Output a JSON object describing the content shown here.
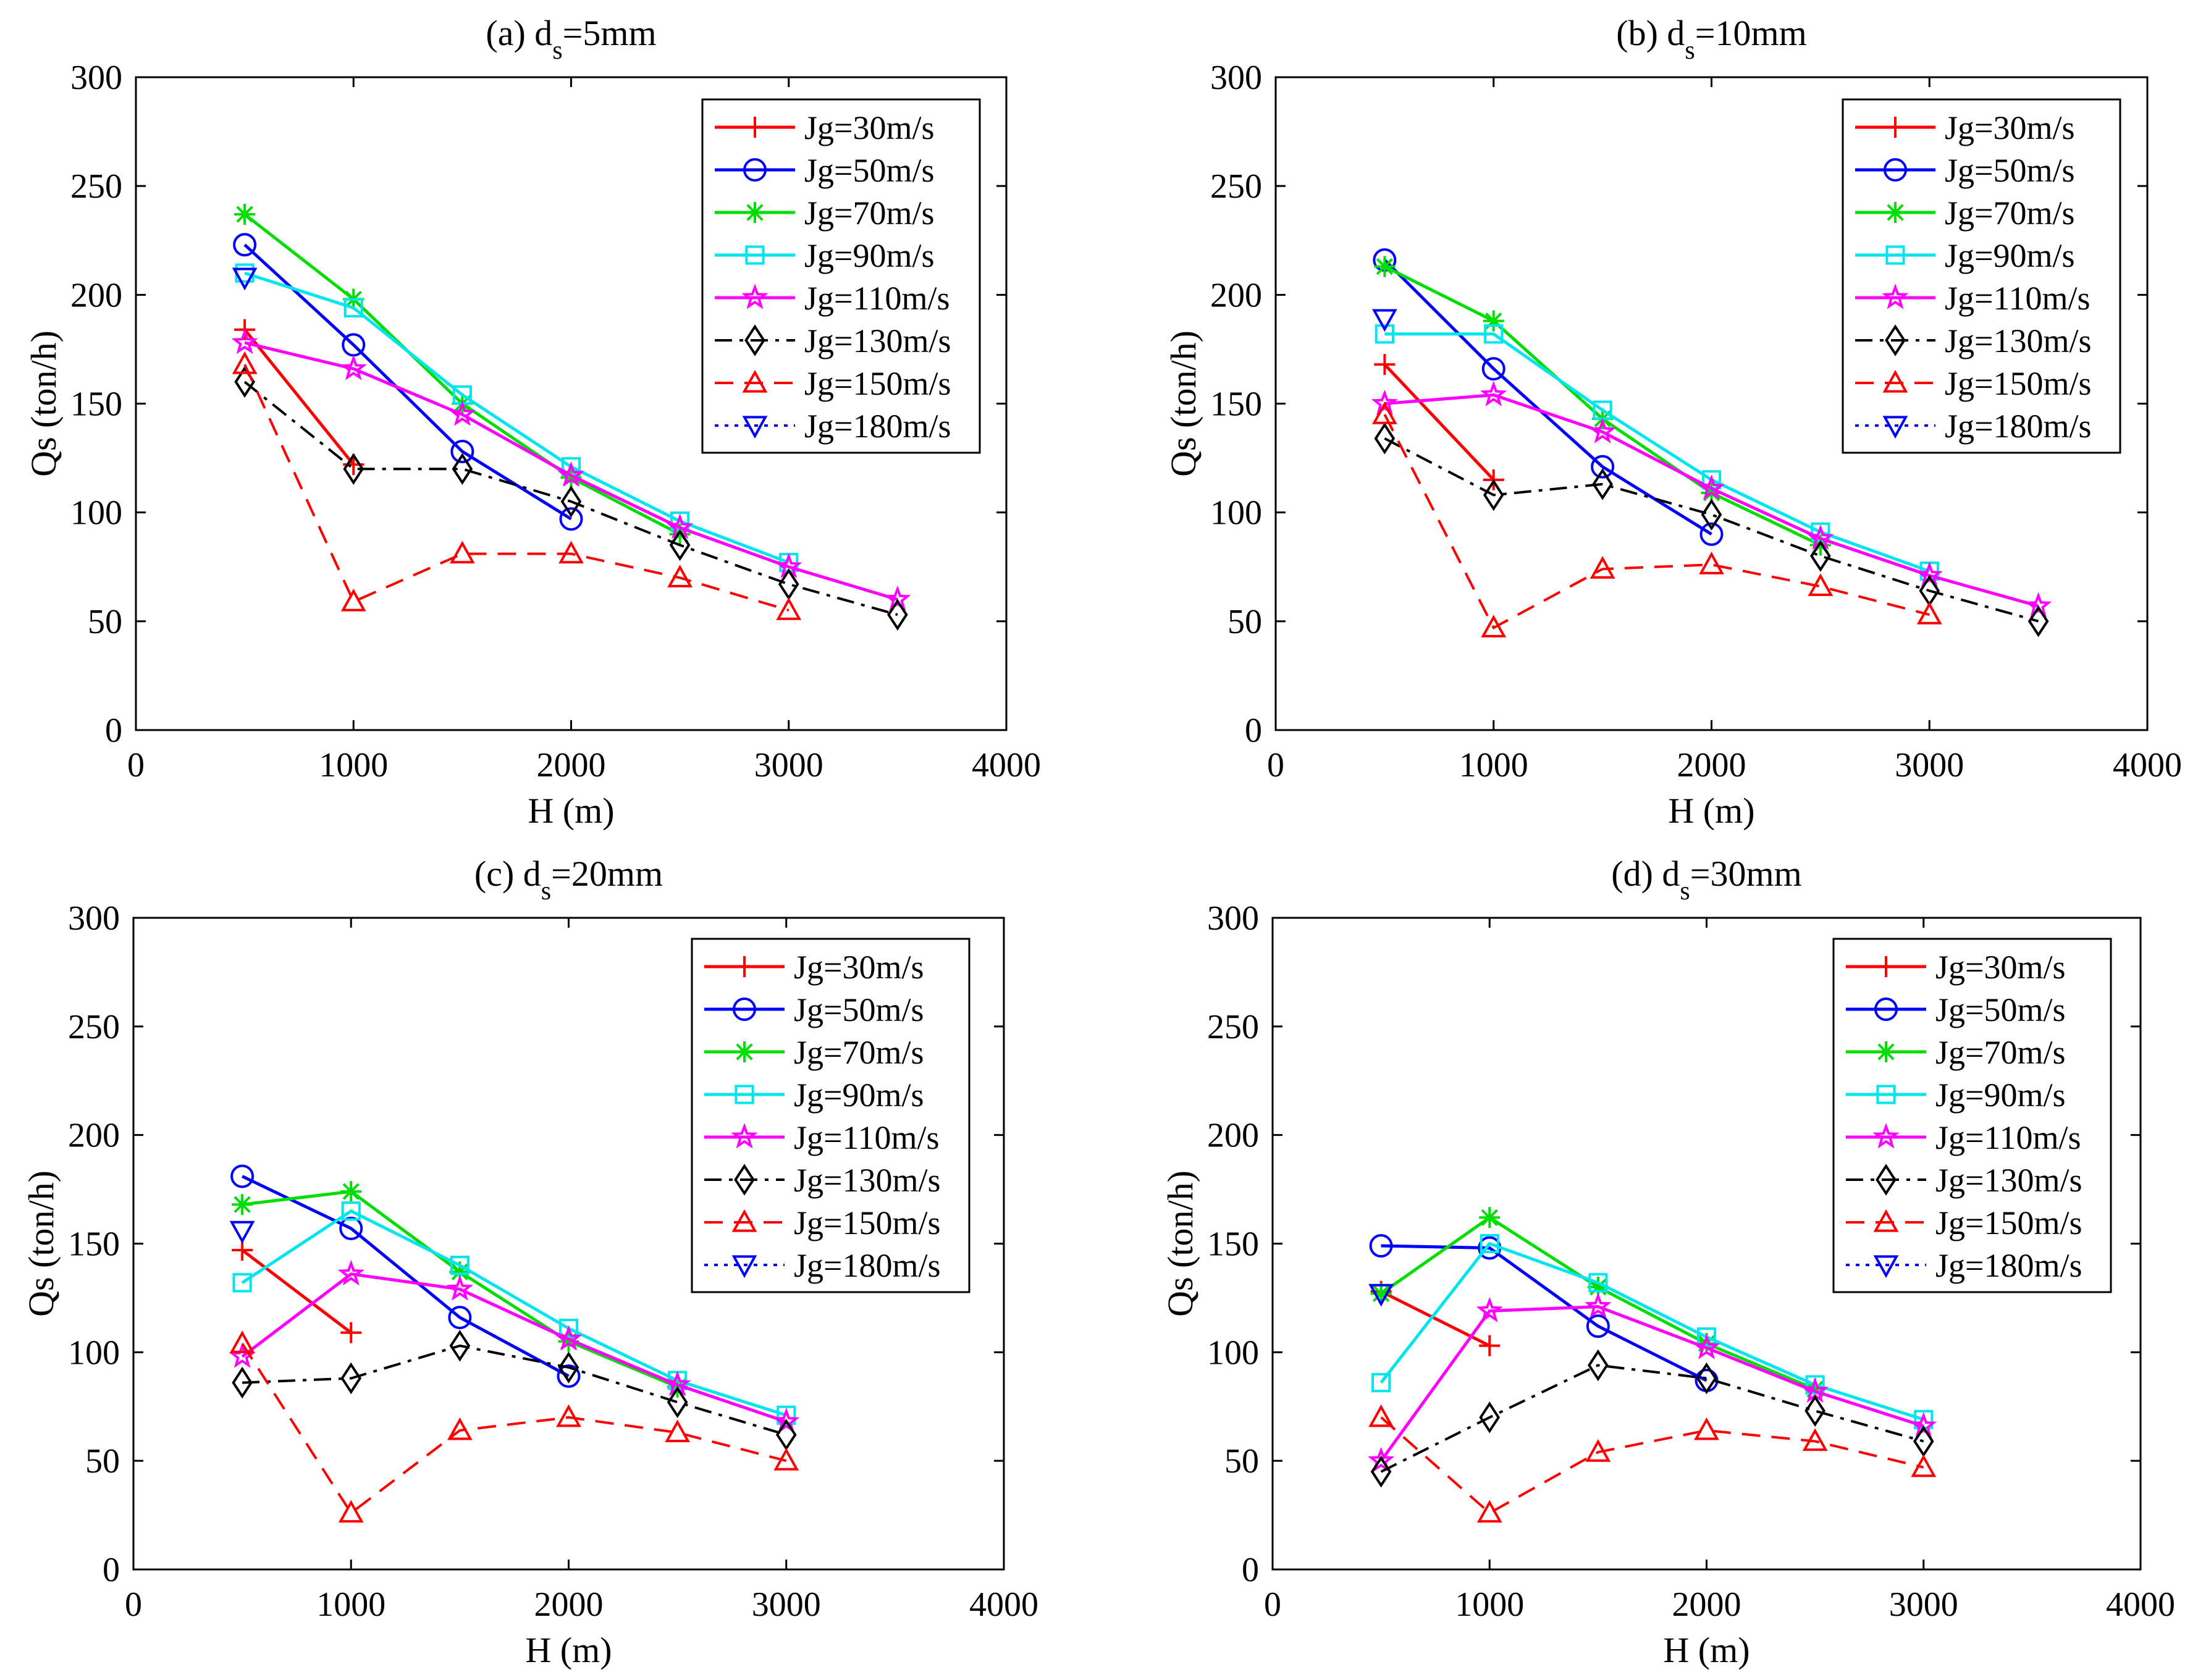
{
  "series_styles": [
    {
      "name": "Jg=30m/s",
      "color": "#ff0000",
      "marker": "plus",
      "dash": "solid"
    },
    {
      "name": "Jg=50m/s",
      "color": "#0000ff",
      "marker": "circle",
      "dash": "solid"
    },
    {
      "name": "Jg=70m/s",
      "color": "#00dd00",
      "marker": "asterisk",
      "dash": "solid"
    },
    {
      "name": "Jg=90m/s",
      "color": "#00e5ee",
      "marker": "square",
      "dash": "solid"
    },
    {
      "name": "Jg=110m/s",
      "color": "#ff00ff",
      "marker": "pentagram",
      "dash": "solid"
    },
    {
      "name": "Jg=130m/s",
      "color": "#000000",
      "marker": "diamond",
      "dash": "dashdot"
    },
    {
      "name": "Jg=150m/s",
      "color": "#ff0000",
      "marker": "triangle-up",
      "dash": "dashed"
    },
    {
      "name": "Jg=180m/s",
      "color": "#0000ff",
      "marker": "triangle-down",
      "dash": "dotted"
    }
  ],
  "chart_data": [
    {
      "type": "line",
      "title": {
        "prefix": "(a) d",
        "sub": "s",
        "suffix": "=5mm"
      },
      "xlabel": "H (m)",
      "ylabel": "Qs (ton/h)",
      "xlim": [
        0,
        4000
      ],
      "ylim": [
        0,
        300
      ],
      "xticks": [
        "0",
        "1000",
        "2000",
        "3000",
        "4000"
      ],
      "yticks": [
        "0",
        "50",
        "100",
        "150",
        "200",
        "250",
        "300"
      ],
      "legend": "top-right",
      "grid": false,
      "series": [
        {
          "name": "Jg=30m/s",
          "x": [
            500,
            1000
          ],
          "y": [
            184,
            122
          ]
        },
        {
          "name": "Jg=50m/s",
          "x": [
            500,
            1000,
            1500,
            2000
          ],
          "y": [
            223,
            177,
            128,
            97
          ]
        },
        {
          "name": "Jg=70m/s",
          "x": [
            500,
            1000,
            1500,
            2000,
            2500
          ],
          "y": [
            237,
            198,
            150,
            116,
            90
          ]
        },
        {
          "name": "Jg=90m/s",
          "x": [
            500,
            1000,
            1500,
            2000,
            2500,
            3000
          ],
          "y": [
            210,
            194,
            154,
            121,
            96,
            77
          ]
        },
        {
          "name": "Jg=110m/s",
          "x": [
            500,
            1000,
            1500,
            2000,
            2500,
            3000,
            3500
          ],
          "y": [
            178,
            166,
            145,
            117,
            93,
            75,
            60
          ]
        },
        {
          "name": "Jg=130m/s",
          "x": [
            500,
            1000,
            1500,
            2000,
            2500,
            3000,
            3500
          ],
          "y": [
            160,
            120,
            120,
            105,
            85,
            67,
            53
          ]
        },
        {
          "name": "Jg=150m/s",
          "x": [
            500,
            1000,
            1500,
            2000,
            2500,
            3000
          ],
          "y": [
            168,
            59,
            81,
            81,
            70,
            55
          ]
        },
        {
          "name": "Jg=180m/s",
          "x": [
            500
          ],
          "y": [
            208
          ]
        }
      ]
    },
    {
      "type": "line",
      "title": {
        "prefix": "(b) d",
        "sub": "s",
        "suffix": "=10mm"
      },
      "xlabel": "H (m)",
      "ylabel": "Qs (ton/h)",
      "xlim": [
        0,
        4000
      ],
      "ylim": [
        0,
        300
      ],
      "xticks": [
        "0",
        "1000",
        "2000",
        "3000",
        "4000"
      ],
      "yticks": [
        "0",
        "50",
        "100",
        "150",
        "200",
        "250",
        "300"
      ],
      "legend": "top-right",
      "grid": false,
      "series": [
        {
          "name": "Jg=30m/s",
          "x": [
            500,
            1000
          ],
          "y": [
            168,
            115
          ]
        },
        {
          "name": "Jg=50m/s",
          "x": [
            500,
            1000,
            1500,
            2000
          ],
          "y": [
            216,
            166,
            121,
            90
          ]
        },
        {
          "name": "Jg=70m/s",
          "x": [
            500,
            1000,
            1500,
            2000,
            2500
          ],
          "y": [
            213,
            188,
            143,
            109,
            85
          ]
        },
        {
          "name": "Jg=90m/s",
          "x": [
            500,
            1000,
            1500,
            2000,
            2500,
            3000
          ],
          "y": [
            182,
            182,
            147,
            115,
            91,
            73
          ]
        },
        {
          "name": "Jg=110m/s",
          "x": [
            500,
            1000,
            1500,
            2000,
            2500,
            3000,
            3500
          ],
          "y": [
            150,
            154,
            137,
            111,
            88,
            71,
            57
          ]
        },
        {
          "name": "Jg=130m/s",
          "x": [
            500,
            1000,
            1500,
            2000,
            2500,
            3000,
            3500
          ],
          "y": [
            134,
            108,
            113,
            99,
            80,
            64,
            50
          ]
        },
        {
          "name": "Jg=150m/s",
          "x": [
            500,
            1000,
            1500,
            2000,
            2500,
            3000
          ],
          "y": [
            145,
            47,
            74,
            76,
            66,
            53
          ]
        },
        {
          "name": "Jg=180m/s",
          "x": [
            500
          ],
          "y": [
            189
          ]
        }
      ]
    },
    {
      "type": "line",
      "title": {
        "prefix": "(c) d",
        "sub": "s",
        "suffix": "=20mm"
      },
      "xlabel": "H (m)",
      "ylabel": "Qs (ton/h)",
      "xlim": [
        0,
        4000
      ],
      "ylim": [
        0,
        300
      ],
      "xticks": [
        "0",
        "1000",
        "2000",
        "3000",
        "4000"
      ],
      "yticks": [
        "0",
        "50",
        "100",
        "150",
        "200",
        "250",
        "300"
      ],
      "legend": "top-right",
      "grid": false,
      "series": [
        {
          "name": "Jg=30m/s",
          "x": [
            500,
            1000
          ],
          "y": [
            147,
            109
          ]
        },
        {
          "name": "Jg=50m/s",
          "x": [
            500,
            1000,
            1500,
            2000
          ],
          "y": [
            181,
            157,
            116,
            89
          ]
        },
        {
          "name": "Jg=70m/s",
          "x": [
            500,
            1000,
            1500,
            2000,
            2500
          ],
          "y": [
            168,
            174,
            137,
            105,
            84
          ]
        },
        {
          "name": "Jg=90m/s",
          "x": [
            500,
            1000,
            1500,
            2000,
            2500,
            3000
          ],
          "y": [
            132,
            165,
            140,
            111,
            87,
            71
          ]
        },
        {
          "name": "Jg=110m/s",
          "x": [
            500,
            1000,
            1500,
            2000,
            2500,
            3000
          ],
          "y": [
            98,
            136,
            129,
            106,
            85,
            68
          ]
        },
        {
          "name": "Jg=130m/s",
          "x": [
            500,
            1000,
            1500,
            2000,
            2500,
            3000
          ],
          "y": [
            86,
            88,
            103,
            93,
            77,
            62
          ]
        },
        {
          "name": "Jg=150m/s",
          "x": [
            500,
            1000,
            1500,
            2000,
            2500,
            3000
          ],
          "y": [
            104,
            26,
            64,
            70,
            63,
            50
          ]
        },
        {
          "name": "Jg=180m/s",
          "x": [
            500
          ],
          "y": [
            156
          ]
        }
      ]
    },
    {
      "type": "line",
      "title": {
        "prefix": "(d) d",
        "sub": "s",
        "suffix": "=30mm"
      },
      "xlabel": "H (m)",
      "ylabel": "Qs (ton/h)",
      "xlim": [
        0,
        4000
      ],
      "ylim": [
        0,
        300
      ],
      "xticks": [
        "0",
        "1000",
        "2000",
        "3000",
        "4000"
      ],
      "yticks": [
        "0",
        "50",
        "100",
        "150",
        "200",
        "250",
        "300"
      ],
      "legend": "top-right",
      "grid": false,
      "series": [
        {
          "name": "Jg=30m/s",
          "x": [
            500,
            1000
          ],
          "y": [
            128,
            103
          ]
        },
        {
          "name": "Jg=50m/s",
          "x": [
            500,
            1000,
            1500,
            2000
          ],
          "y": [
            149,
            148,
            112,
            87
          ]
        },
        {
          "name": "Jg=70m/s",
          "x": [
            500,
            1000,
            1500,
            2000,
            2500
          ],
          "y": [
            127,
            162,
            130,
            104,
            83
          ]
        },
        {
          "name": "Jg=90m/s",
          "x": [
            500,
            1000,
            1500,
            2000,
            2500,
            3000
          ],
          "y": [
            86,
            150,
            132,
            107,
            85,
            69
          ]
        },
        {
          "name": "Jg=110m/s",
          "x": [
            500,
            1000,
            1500,
            2000,
            2500,
            3000
          ],
          "y": [
            50,
            119,
            121,
            102,
            82,
            66
          ]
        },
        {
          "name": "Jg=130m/s",
          "x": [
            500,
            1000,
            1500,
            2000,
            2500,
            3000
          ],
          "y": [
            45,
            70,
            94,
            88,
            73,
            59
          ]
        },
        {
          "name": "Jg=150m/s",
          "x": [
            500,
            1000,
            1500,
            2000,
            2500,
            3000
          ],
          "y": [
            70,
            26,
            54,
            64,
            59,
            47
          ]
        },
        {
          "name": "Jg=180m/s",
          "x": [
            500
          ],
          "y": [
            127
          ]
        }
      ]
    }
  ]
}
